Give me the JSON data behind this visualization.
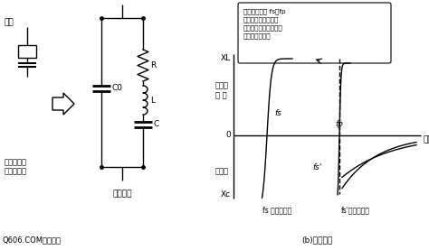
{
  "bg_color": "#ffffff",
  "line_color": "#000000",
  "title_left": "Q606.COM等效电路",
  "title_right": "(b)电抗特性",
  "label_fuao": "符号",
  "label_crystal": "水晶振荡子\n陶瓷振荡子",
  "label_dengxiao": "等效电路",
  "label_C0": "C0",
  "label_R": "R",
  "label_L": "L",
  "label_C": "C",
  "label_XL": "XL",
  "label_Xc": "Xc",
  "label_0": "0",
  "label_fs": "fs",
  "label_fsp": "fs'",
  "label_fp": "fp",
  "label_dianganxing": "电感性\n电 抗",
  "label_dianrongxing": "电容性",
  "label_pinlv": "频率",
  "label_fs_tao": "fs 陶瓷振荡子",
  "label_fsp_shui": "fs'水晶振荡子",
  "note_text": "陶瓷振荡子的 fs－fp\n比水晶振荡子宽，因\n此，频率变化量较大，\n方便频率调变。"
}
